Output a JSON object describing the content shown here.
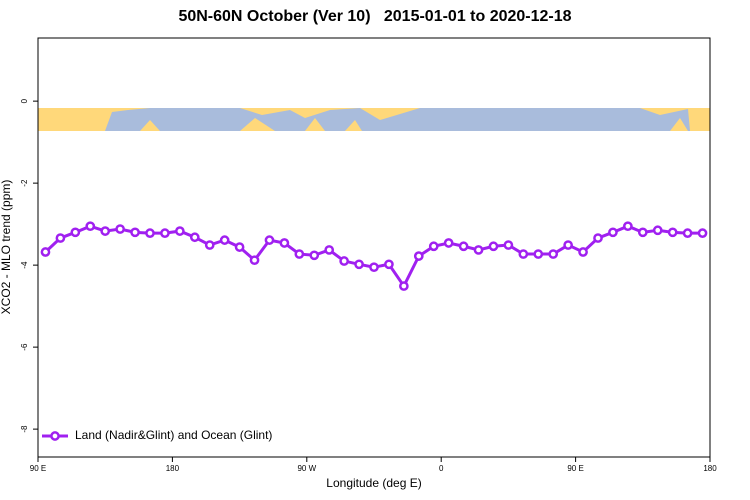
{
  "chart_data": {
    "type": "line",
    "title": "50N-60N October (Ver 10)   2015-01-01 to 2020-12-18",
    "xlabel": "Longitude (deg E)",
    "ylabel": "XCO2 - MLO trend (ppm)",
    "xlim": [
      90,
      540
    ],
    "ylim": [
      -8.68,
      1.54
    ],
    "xticks": [
      {
        "value": 90,
        "label": "90 E"
      },
      180,
      {
        "value": 270,
        "label": "90 W"
      },
      {
        "value": 360,
        "label": "0"
      },
      {
        "value": 450,
        "label": "90 E"
      },
      {
        "value": 540,
        "label": "180"
      }
    ],
    "yticks": [
      0,
      -2,
      -4,
      -6,
      -8
    ],
    "legend": "bottom-left",
    "x": [
      95,
      105,
      115,
      125,
      135,
      145,
      155,
      165,
      175,
      185,
      195,
      205,
      215,
      225,
      235,
      245,
      255,
      265,
      275,
      285,
      295,
      305,
      315,
      325,
      335,
      345,
      355,
      365,
      375,
      385,
      395,
      405,
      415,
      425,
      435,
      445,
      455,
      465,
      475,
      485,
      495,
      505,
      515,
      525,
      535
    ],
    "series": [
      {
        "name": "Land (Nadir&Glint) and Ocean (Glint)",
        "color": "#a020f0",
        "values": [
          -3.68,
          -3.34,
          -3.2,
          -3.05,
          -3.17,
          -3.12,
          -3.2,
          -3.22,
          -3.22,
          -3.17,
          -3.32,
          -3.51,
          -3.39,
          -3.56,
          -3.88,
          -3.39,
          -3.46,
          -3.73,
          -3.76,
          -3.63,
          -3.9,
          -3.98,
          -4.05,
          -3.98,
          -4.51,
          -3.78,
          -3.54,
          -3.46,
          -3.54,
          -3.63,
          -3.54,
          -3.51,
          -3.73,
          -3.73,
          -3.73,
          -3.51,
          -3.68,
          -3.34,
          -3.2,
          -3.05,
          -3.2,
          -3.15,
          -3.2,
          -3.22,
          -3.22
        ]
      }
    ]
  }
}
